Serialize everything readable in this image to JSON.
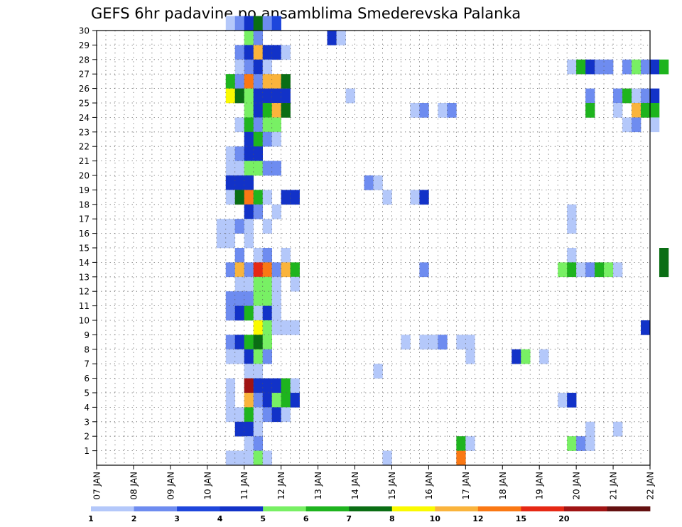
{
  "title": "GEFS 6hr padavine po ansamblima Smederevska Palanka",
  "chart_data": {
    "type": "heatmap",
    "title": "GEFS 6hr padavine po ansamblima Smederevska Palanka",
    "xlabel": "",
    "ylabel": "",
    "x_tick_labels": [
      "07 JAN",
      "08 JAN",
      "09 JAN",
      "10 JAN",
      "11 JAN",
      "12 JAN",
      "13 JAN",
      "14 JAN",
      "15 JAN",
      "16 JAN",
      "17 JAN",
      "18 JAN",
      "19 JAN",
      "20 JAN",
      "21 JAN",
      "22 JAN"
    ],
    "y_tick_labels": [
      "1",
      "2",
      "3",
      "4",
      "5",
      "6",
      "7",
      "8",
      "9",
      "10",
      "11",
      "12",
      "13",
      "14",
      "15",
      "16",
      "17",
      "18",
      "19",
      "20",
      "21",
      "22",
      "23",
      "24",
      "25",
      "26",
      "27",
      "28",
      "29",
      "30"
    ],
    "xlim_days": [
      7,
      22
    ],
    "ylim_members": [
      0,
      30
    ],
    "grid": true,
    "legend_placement": "bottom",
    "legend": {
      "levels": [
        "1",
        "2",
        "3",
        "4",
        "5",
        "6",
        "7",
        "8",
        "10",
        "12",
        "15",
        "20"
      ],
      "colors": [
        "#b4c8fa",
        "#6e8cf0",
        "#1e46dc",
        "#1232c8",
        "#78f064",
        "#1eb41e",
        "#0a6e14",
        "#fafa00",
        "#fab43c",
        "#fa7814",
        "#e62814",
        "#a01414",
        "#641010"
      ]
    },
    "cells": [
      [
        10.625,
        30,
        0
      ],
      [
        10.875,
        30,
        1
      ],
      [
        11.125,
        30,
        3
      ],
      [
        11.375,
        30,
        6
      ],
      [
        11.625,
        30,
        1
      ],
      [
        11.875,
        30,
        2
      ],
      [
        11.125,
        29,
        4
      ],
      [
        11.375,
        29,
        1
      ],
      [
        13.375,
        29,
        3
      ],
      [
        13.625,
        29,
        0
      ],
      [
        10.875,
        28,
        1
      ],
      [
        11.125,
        28,
        3
      ],
      [
        11.375,
        28,
        8
      ],
      [
        11.625,
        28,
        3
      ],
      [
        11.875,
        28,
        3
      ],
      [
        12.125,
        28,
        0
      ],
      [
        10.875,
        27,
        0
      ],
      [
        11.125,
        27,
        1
      ],
      [
        11.375,
        27,
        3
      ],
      [
        11.625,
        27,
        0
      ],
      [
        19.875,
        27,
        0
      ],
      [
        20.125,
        27,
        5
      ],
      [
        20.375,
        27,
        3
      ],
      [
        20.625,
        27,
        1
      ],
      [
        20.875,
        27,
        1
      ],
      [
        21.375,
        27,
        1
      ],
      [
        21.625,
        27,
        4
      ],
      [
        21.875,
        27,
        1
      ],
      [
        22.125,
        27,
        3
      ],
      [
        22.375,
        27,
        5
      ],
      [
        10.625,
        26,
        5
      ],
      [
        10.875,
        26,
        1
      ],
      [
        11.125,
        26,
        9
      ],
      [
        11.375,
        26,
        1
      ],
      [
        11.625,
        26,
        8
      ],
      [
        11.875,
        26,
        8
      ],
      [
        12.125,
        26,
        6
      ],
      [
        10.625,
        25,
        7
      ],
      [
        10.875,
        25,
        6
      ],
      [
        11.125,
        25,
        4
      ],
      [
        11.375,
        25,
        3
      ],
      [
        11.625,
        25,
        3
      ],
      [
        11.875,
        25,
        3
      ],
      [
        12.125,
        25,
        3
      ],
      [
        13.875,
        25,
        0
      ],
      [
        20.375,
        25,
        1
      ],
      [
        21.125,
        25,
        1
      ],
      [
        21.375,
        25,
        5
      ],
      [
        21.625,
        25,
        0
      ],
      [
        21.875,
        25,
        1
      ],
      [
        22.125,
        25,
        3
      ],
      [
        11.125,
        24,
        4
      ],
      [
        11.375,
        24,
        3
      ],
      [
        11.625,
        24,
        5
      ],
      [
        11.875,
        24,
        8
      ],
      [
        12.125,
        24,
        6
      ],
      [
        15.625,
        24,
        0
      ],
      [
        15.875,
        24,
        1
      ],
      [
        16.375,
        24,
        0
      ],
      [
        16.625,
        24,
        1
      ],
      [
        20.375,
        24,
        5
      ],
      [
        21.125,
        24,
        0
      ],
      [
        21.625,
        24,
        8
      ],
      [
        21.875,
        24,
        5
      ],
      [
        22.125,
        24,
        5
      ],
      [
        10.875,
        23,
        0
      ],
      [
        11.125,
        23,
        5
      ],
      [
        11.375,
        23,
        1
      ],
      [
        11.625,
        23,
        4
      ],
      [
        11.875,
        23,
        4
      ],
      [
        21.375,
        23,
        0
      ],
      [
        21.625,
        23,
        1
      ],
      [
        22.125,
        23,
        0
      ],
      [
        11.125,
        22,
        3
      ],
      [
        11.375,
        22,
        5
      ],
      [
        11.625,
        22,
        1
      ],
      [
        11.875,
        22,
        0
      ],
      [
        10.625,
        21,
        0
      ],
      [
        10.875,
        21,
        1
      ],
      [
        11.125,
        21,
        3
      ],
      [
        11.375,
        21,
        3
      ],
      [
        10.625,
        20,
        0
      ],
      [
        10.875,
        20,
        0
      ],
      [
        11.125,
        20,
        4
      ],
      [
        11.375,
        20,
        4
      ],
      [
        11.625,
        20,
        1
      ],
      [
        11.875,
        20,
        1
      ],
      [
        10.625,
        19,
        3
      ],
      [
        10.875,
        19,
        3
      ],
      [
        11.125,
        19,
        3
      ],
      [
        14.375,
        19,
        1
      ],
      [
        14.625,
        19,
        0
      ],
      [
        10.625,
        18,
        0
      ],
      [
        10.875,
        18,
        6
      ],
      [
        11.125,
        18,
        9
      ],
      [
        11.375,
        18,
        5
      ],
      [
        11.625,
        18,
        0
      ],
      [
        12.125,
        18,
        3
      ],
      [
        12.375,
        18,
        3
      ],
      [
        14.875,
        18,
        0
      ],
      [
        15.625,
        18,
        0
      ],
      [
        15.875,
        18,
        3
      ],
      [
        11.125,
        17,
        3
      ],
      [
        11.375,
        17,
        1
      ],
      [
        11.875,
        17,
        0
      ],
      [
        19.875,
        17,
        0
      ],
      [
        10.375,
        16,
        0
      ],
      [
        10.625,
        16,
        0
      ],
      [
        10.875,
        16,
        1
      ],
      [
        11.125,
        16,
        0
      ],
      [
        11.625,
        16,
        0
      ],
      [
        19.875,
        16,
        0
      ],
      [
        10.375,
        15,
        0
      ],
      [
        10.625,
        15,
        0
      ],
      [
        11.125,
        15,
        0
      ],
      [
        10.875,
        14,
        1
      ],
      [
        11.375,
        14,
        0
      ],
      [
        11.625,
        14,
        1
      ],
      [
        12.125,
        14,
        0
      ],
      [
        19.875,
        14,
        0
      ],
      [
        22.375,
        14,
        6
      ],
      [
        10.625,
        13,
        1
      ],
      [
        10.875,
        13,
        8
      ],
      [
        11.125,
        13,
        1
      ],
      [
        11.375,
        13,
        10
      ],
      [
        11.625,
        13,
        9
      ],
      [
        11.875,
        13,
        1
      ],
      [
        12.125,
        13,
        8
      ],
      [
        12.375,
        13,
        5
      ],
      [
        15.875,
        13,
        1
      ],
      [
        19.625,
        13,
        4
      ],
      [
        19.875,
        13,
        5
      ],
      [
        20.125,
        13,
        0
      ],
      [
        20.375,
        13,
        1
      ],
      [
        20.625,
        13,
        5
      ],
      [
        20.875,
        13,
        4
      ],
      [
        21.125,
        13,
        0
      ],
      [
        22.375,
        13,
        6
      ],
      [
        10.875,
        12,
        0
      ],
      [
        11.125,
        12,
        0
      ],
      [
        11.375,
        12,
        4
      ],
      [
        11.625,
        12,
        4
      ],
      [
        11.875,
        12,
        0
      ],
      [
        12.375,
        12,
        0
      ],
      [
        10.625,
        11,
        1
      ],
      [
        10.875,
        11,
        1
      ],
      [
        11.125,
        11,
        1
      ],
      [
        11.375,
        11,
        4
      ],
      [
        11.625,
        11,
        4
      ],
      [
        11.875,
        11,
        0
      ],
      [
        10.625,
        10,
        1
      ],
      [
        10.875,
        10,
        3
      ],
      [
        11.125,
        10,
        5
      ],
      [
        11.375,
        10,
        0
      ],
      [
        11.625,
        10,
        3
      ],
      [
        11.875,
        10,
        0
      ],
      [
        11.375,
        9,
        7
      ],
      [
        11.625,
        9,
        4
      ],
      [
        11.875,
        9,
        0
      ],
      [
        12.125,
        9,
        0
      ],
      [
        12.375,
        9,
        0
      ],
      [
        21.875,
        9,
        3
      ],
      [
        10.625,
        8,
        1
      ],
      [
        10.875,
        8,
        3
      ],
      [
        11.125,
        8,
        5
      ],
      [
        11.375,
        8,
        6
      ],
      [
        11.625,
        8,
        4
      ],
      [
        15.375,
        8,
        0
      ],
      [
        15.875,
        8,
        0
      ],
      [
        16.125,
        8,
        0
      ],
      [
        16.375,
        8,
        1
      ],
      [
        16.875,
        8,
        0
      ],
      [
        17.125,
        8,
        0
      ],
      [
        10.625,
        7,
        0
      ],
      [
        10.875,
        7,
        0
      ],
      [
        11.125,
        7,
        3
      ],
      [
        11.375,
        7,
        4
      ],
      [
        11.625,
        7,
        1
      ],
      [
        17.125,
        7,
        0
      ],
      [
        18.375,
        7,
        3
      ],
      [
        18.625,
        7,
        4
      ],
      [
        19.125,
        7,
        0
      ],
      [
        11.125,
        6,
        0
      ],
      [
        11.375,
        6,
        0
      ],
      [
        14.625,
        6,
        0
      ],
      [
        10.625,
        5,
        0
      ],
      [
        11.125,
        5,
        11
      ],
      [
        11.375,
        5,
        3
      ],
      [
        11.625,
        5,
        3
      ],
      [
        11.875,
        5,
        3
      ],
      [
        12.125,
        5,
        5
      ],
      [
        12.375,
        5,
        0
      ],
      [
        10.625,
        4,
        0
      ],
      [
        11.125,
        4,
        8
      ],
      [
        11.375,
        4,
        1
      ],
      [
        11.625,
        4,
        3
      ],
      [
        11.875,
        4,
        4
      ],
      [
        12.125,
        4,
        5
      ],
      [
        12.375,
        4,
        3
      ],
      [
        19.625,
        4,
        0
      ],
      [
        19.875,
        4,
        3
      ],
      [
        10.625,
        3,
        0
      ],
      [
        10.875,
        3,
        0
      ],
      [
        11.125,
        3,
        5
      ],
      [
        11.375,
        3,
        0
      ],
      [
        11.625,
        3,
        1
      ],
      [
        11.875,
        3,
        3
      ],
      [
        12.125,
        3,
        0
      ],
      [
        10.875,
        2,
        3
      ],
      [
        11.125,
        2,
        3
      ],
      [
        11.375,
        2,
        0
      ],
      [
        20.375,
        2,
        0
      ],
      [
        21.125,
        2,
        0
      ],
      [
        11.125,
        1,
        0
      ],
      [
        11.375,
        1,
        1
      ],
      [
        16.875,
        1,
        5
      ],
      [
        17.125,
        1,
        0
      ],
      [
        19.875,
        1,
        4
      ],
      [
        20.125,
        1,
        1
      ],
      [
        20.375,
        1,
        0
      ],
      [
        10.625,
        0,
        0
      ],
      [
        10.875,
        0,
        0
      ],
      [
        11.125,
        0,
        0
      ],
      [
        11.375,
        0,
        4
      ],
      [
        11.625,
        0,
        0
      ],
      [
        14.875,
        0,
        0
      ],
      [
        16.875,
        0,
        9
      ]
    ]
  }
}
